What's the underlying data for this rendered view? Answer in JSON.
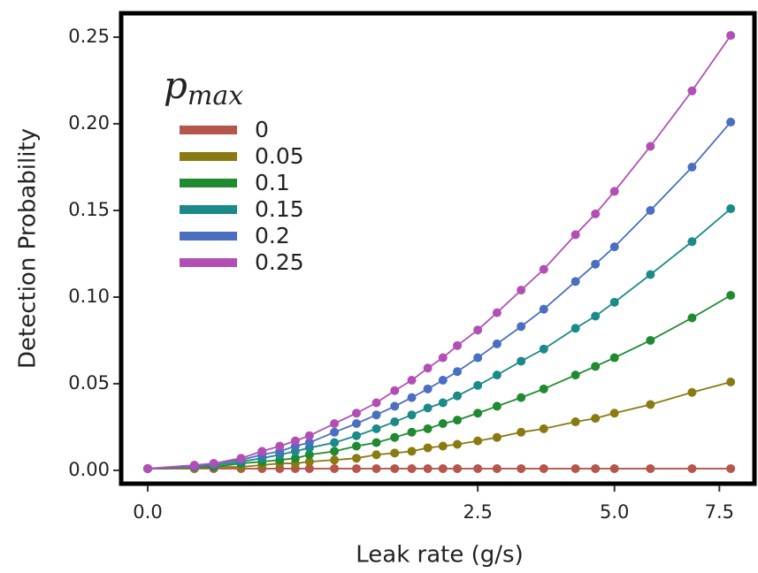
{
  "chart_data": {
    "type": "line",
    "x_label": "Leak rate (g/s)",
    "y_label": "Detection Probability",
    "legend_title": "p",
    "legend_title_sub": "max",
    "x": [
      0,
      0.05,
      0.1,
      0.2,
      0.3,
      0.4,
      0.5,
      0.6,
      0.8,
      1.0,
      1.2,
      1.4,
      1.6,
      1.8,
      2.0,
      2.2,
      2.5,
      2.8,
      3.2,
      3.6,
      4.2,
      4.6,
      5.0,
      5.8,
      6.8,
      7.8
    ],
    "series": [
      {
        "name": "0",
        "color": "#b5554c",
        "values": [
          0.001,
          0.001,
          0.001,
          0.001,
          0.001,
          0.001,
          0.001,
          0.001,
          0.001,
          0.001,
          0.001,
          0.001,
          0.001,
          0.001,
          0.001,
          0.001,
          0.001,
          0.001,
          0.001,
          0.001,
          0.001,
          0.001,
          0.001,
          0.001,
          0.001,
          0.001
        ]
      },
      {
        "name": "0.05",
        "color": "#8a7a12",
        "values": [
          0.001,
          0.001,
          0.002,
          0.002,
          0.003,
          0.004,
          0.004,
          0.005,
          0.006,
          0.007,
          0.009,
          0.01,
          0.011,
          0.013,
          0.014,
          0.015,
          0.017,
          0.019,
          0.022,
          0.024,
          0.028,
          0.03,
          0.033,
          0.038,
          0.045,
          0.051
        ]
      },
      {
        "name": "0.1",
        "color": "#1f8a30",
        "values": [
          0.001,
          0.002,
          0.002,
          0.004,
          0.005,
          0.006,
          0.007,
          0.009,
          0.011,
          0.014,
          0.016,
          0.019,
          0.022,
          0.024,
          0.027,
          0.029,
          0.033,
          0.037,
          0.042,
          0.047,
          0.055,
          0.06,
          0.065,
          0.075,
          0.088,
          0.101
        ]
      },
      {
        "name": "0.15",
        "color": "#1b8a88",
        "values": [
          0.001,
          0.002,
          0.003,
          0.005,
          0.007,
          0.009,
          0.011,
          0.013,
          0.016,
          0.02,
          0.024,
          0.028,
          0.032,
          0.036,
          0.039,
          0.043,
          0.049,
          0.055,
          0.063,
          0.07,
          0.082,
          0.089,
          0.097,
          0.113,
          0.132,
          0.151
        ]
      },
      {
        "name": "0.2",
        "color": "#4a6fc0",
        "values": [
          0.001,
          0.002,
          0.004,
          0.006,
          0.009,
          0.011,
          0.014,
          0.016,
          0.022,
          0.027,
          0.032,
          0.037,
          0.042,
          0.047,
          0.052,
          0.057,
          0.065,
          0.073,
          0.083,
          0.093,
          0.109,
          0.119,
          0.129,
          0.15,
          0.175,
          0.201
        ]
      },
      {
        "name": "0.25",
        "color": "#b24fb4",
        "values": [
          0.001,
          0.003,
          0.004,
          0.007,
          0.011,
          0.014,
          0.017,
          0.02,
          0.027,
          0.033,
          0.039,
          0.046,
          0.052,
          0.059,
          0.065,
          0.072,
          0.081,
          0.091,
          0.104,
          0.116,
          0.136,
          0.148,
          0.161,
          0.187,
          0.219,
          0.251
        ]
      }
    ],
    "xscale": "sqrt",
    "xlim": [
      0,
      8.4
    ],
    "xticks": [
      {
        "value": 0,
        "label": "0.0"
      },
      {
        "value": 2.5,
        "label": "2.5"
      },
      {
        "value": 5,
        "label": "5.0"
      },
      {
        "value": 7.5,
        "label": "7.5"
      }
    ],
    "ylim": [
      -0.0077,
      0.2638
    ],
    "yticks": [
      {
        "value": 0,
        "label": "0.00"
      },
      {
        "value": 0.05,
        "label": "0.05"
      },
      {
        "value": 0.1,
        "label": "0.10"
      },
      {
        "value": 0.15,
        "label": "0.15"
      },
      {
        "value": 0.2,
        "label": "0.20"
      },
      {
        "value": 0.25,
        "label": "0.25"
      }
    ],
    "grid": false,
    "legend": "top-left"
  }
}
